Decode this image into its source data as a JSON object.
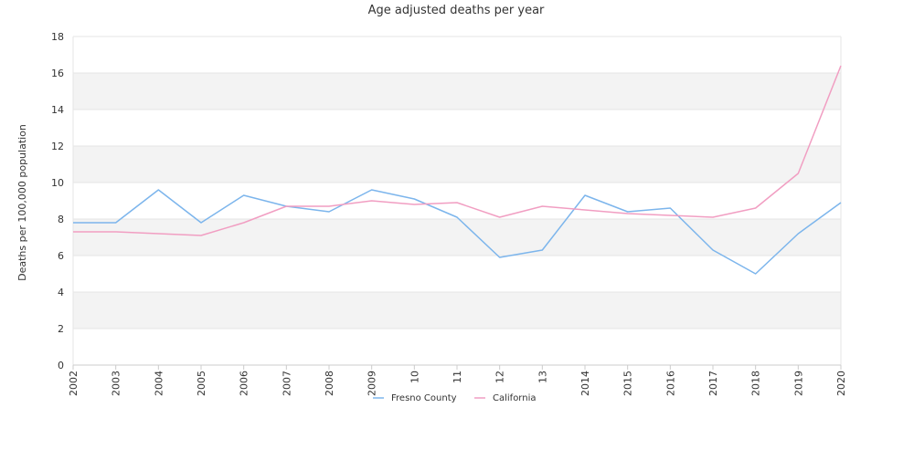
{
  "chart_data": {
    "type": "line",
    "title": "Age adjusted deaths per year",
    "xlabel": "",
    "ylabel": "Deaths per 100,000 population",
    "x": [
      "2002",
      "2003",
      "2004",
      "2005",
      "2006",
      "2007",
      "2008",
      "2009",
      "2010",
      "2011",
      "2012",
      "2013",
      "2014",
      "2015",
      "2016",
      "2017",
      "2018",
      "2019",
      "2020"
    ],
    "x_tick_labels": [
      "2002",
      "2003",
      "2004",
      "2005",
      "2006",
      "2007",
      "2008",
      "2009",
      "10",
      "11",
      "12",
      "13",
      "2014",
      "2015",
      "2016",
      "2017",
      "2018",
      "2019",
      "2020"
    ],
    "ylim": [
      0,
      18
    ],
    "yticks": [
      0,
      2,
      4,
      6,
      8,
      10,
      12,
      14,
      16,
      18
    ],
    "grid": "horizontal alternating bands",
    "legend_position": "bottom",
    "series": [
      {
        "name": "Fresno County",
        "color": "#7cb5ec",
        "values": [
          7.8,
          7.8,
          9.6,
          7.8,
          9.3,
          8.7,
          8.4,
          9.6,
          9.1,
          8.1,
          5.9,
          6.3,
          9.3,
          8.4,
          8.6,
          6.3,
          5.0,
          7.2,
          8.9
        ]
      },
      {
        "name": "California",
        "color": "#f19ec2",
        "values": [
          7.3,
          7.3,
          7.2,
          7.1,
          7.8,
          8.7,
          8.7,
          9.0,
          8.8,
          8.9,
          8.1,
          8.7,
          8.5,
          8.3,
          8.2,
          8.1,
          8.6,
          10.5,
          16.4
        ]
      }
    ]
  }
}
